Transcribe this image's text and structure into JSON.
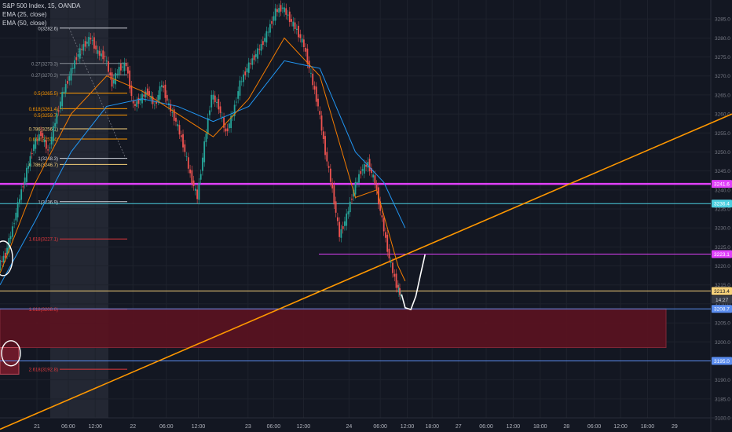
{
  "legend": {
    "title": "S&P 500 Index, 15, OANDA",
    "ema1": "EMA (25, close)",
    "ema2": "EMA (50, close)"
  },
  "colors": {
    "background": "#131722",
    "grid": "#1e222d",
    "candle_up": "#26a69a",
    "ema25": "#f57c00",
    "ema50": "#2196f3",
    "magenta": "#e040fb",
    "trendline": "#ff9800",
    "demand_zone": "#5c1220",
    "cyan": "#4dd0e1",
    "blue": "#5b8def",
    "yellow": "#f7d27a"
  },
  "chart_data": {
    "type": "line",
    "title": "S&P 500 Index, 15, OANDA",
    "xlabel": "",
    "ylabel": "",
    "ylim": [
      3180,
      3290
    ],
    "grid": true,
    "y_ticks": [
      "3285.0",
      "3280.0",
      "3275.0",
      "3270.0",
      "3265.0",
      "3260.0",
      "3255.0",
      "3250.0",
      "3245.0",
      "3240.0",
      "3235.0",
      "3230.0",
      "3225.0",
      "3220.0",
      "3215.0",
      "3210.0",
      "3205.0",
      "3200.0",
      "3195.0",
      "3190.0",
      "3185.0",
      "3180.0"
    ],
    "x_ticks": [
      "21",
      "06:00",
      "12:00",
      "22",
      "06:00",
      "12:00",
      "23",
      "06:00",
      "12:00",
      "24",
      "06:00",
      "12:00",
      "18:00",
      "27",
      "06:00",
      "12:00",
      "18:00",
      "28",
      "06:00",
      "12:00",
      "18:00",
      "29"
    ],
    "x_tick_pos": [
      0.052,
      0.096,
      0.134,
      0.187,
      0.234,
      0.279,
      0.349,
      0.385,
      0.427,
      0.491,
      0.535,
      0.573,
      0.608,
      0.645,
      0.684,
      0.722,
      0.76,
      0.797,
      0.836,
      0.873,
      0.911,
      0.949
    ],
    "price_series": [
      [
        0.0,
        3220.0
      ],
      [
        0.01,
        3223.0
      ],
      [
        0.02,
        3230.0
      ],
      [
        0.03,
        3238.0
      ],
      [
        0.04,
        3245.0
      ],
      [
        0.05,
        3252.0
      ],
      [
        0.06,
        3255.0
      ],
      [
        0.07,
        3250.0
      ],
      [
        0.08,
        3258.0
      ],
      [
        0.09,
        3265.0
      ],
      [
        0.1,
        3270.0
      ],
      [
        0.11,
        3275.0
      ],
      [
        0.12,
        3278.0
      ],
      [
        0.13,
        3280.0
      ],
      [
        0.14,
        3276.0
      ],
      [
        0.15,
        3275.0
      ],
      [
        0.16,
        3268.0
      ],
      [
        0.17,
        3272.0
      ],
      [
        0.18,
        3273.0
      ],
      [
        0.19,
        3262.0
      ],
      [
        0.2,
        3264.0
      ],
      [
        0.21,
        3266.0
      ],
      [
        0.22,
        3262.0
      ],
      [
        0.23,
        3268.0
      ],
      [
        0.24,
        3262.0
      ],
      [
        0.25,
        3258.0
      ],
      [
        0.26,
        3252.0
      ],
      [
        0.27,
        3244.0
      ],
      [
        0.28,
        3238.0
      ],
      [
        0.29,
        3252.0
      ],
      [
        0.3,
        3265.0
      ],
      [
        0.31,
        3262.0
      ],
      [
        0.32,
        3255.0
      ],
      [
        0.33,
        3260.0
      ],
      [
        0.34,
        3268.0
      ],
      [
        0.35,
        3272.0
      ],
      [
        0.36,
        3275.0
      ],
      [
        0.37,
        3278.0
      ],
      [
        0.38,
        3282.0
      ],
      [
        0.39,
        3287.0
      ],
      [
        0.4,
        3288.0
      ],
      [
        0.41,
        3285.0
      ],
      [
        0.42,
        3282.0
      ],
      [
        0.43,
        3278.0
      ],
      [
        0.44,
        3270.0
      ],
      [
        0.45,
        3262.0
      ],
      [
        0.46,
        3250.0
      ],
      [
        0.47,
        3240.0
      ],
      [
        0.48,
        3228.0
      ],
      [
        0.49,
        3233.0
      ],
      [
        0.5,
        3240.0
      ],
      [
        0.51,
        3245.0
      ],
      [
        0.52,
        3247.0
      ],
      [
        0.53,
        3242.0
      ],
      [
        0.54,
        3232.0
      ],
      [
        0.55,
        3222.0
      ],
      [
        0.56,
        3215.0
      ],
      [
        0.565,
        3212.0
      ]
    ],
    "ema25_series": [
      [
        0.0,
        3218.0
      ],
      [
        0.05,
        3242.0
      ],
      [
        0.1,
        3260.0
      ],
      [
        0.15,
        3270.0
      ],
      [
        0.2,
        3266.0
      ],
      [
        0.25,
        3260.0
      ],
      [
        0.3,
        3254.0
      ],
      [
        0.35,
        3264.0
      ],
      [
        0.4,
        3280.0
      ],
      [
        0.45,
        3270.0
      ],
      [
        0.5,
        3238.0
      ],
      [
        0.53,
        3240.0
      ],
      [
        0.56,
        3220.0
      ],
      [
        0.57,
        3216.0
      ]
    ],
    "ema50_series": [
      [
        0.0,
        3215.0
      ],
      [
        0.05,
        3232.0
      ],
      [
        0.1,
        3250.0
      ],
      [
        0.15,
        3262.0
      ],
      [
        0.2,
        3264.0
      ],
      [
        0.25,
        3262.0
      ],
      [
        0.3,
        3258.0
      ],
      [
        0.35,
        3262.0
      ],
      [
        0.4,
        3274.0
      ],
      [
        0.45,
        3272.0
      ],
      [
        0.5,
        3250.0
      ],
      [
        0.54,
        3242.0
      ],
      [
        0.56,
        3234.0
      ],
      [
        0.57,
        3230.0
      ]
    ],
    "fib_levels": [
      {
        "label": "0(3282.6)",
        "value": 3282.6,
        "color": "#d1d4dc"
      },
      {
        "label": "0.27(3273.3)",
        "value": 3273.3,
        "color": "#8a8f98"
      },
      {
        "label": "0.27(3270.3)",
        "value": 3270.3,
        "color": "#8a8f98"
      },
      {
        "label": "0.5(3265.5)",
        "value": 3265.5,
        "color": "#ff9800"
      },
      {
        "label": "0.618(3261.4)",
        "value": 3261.4,
        "color": "#ff9800"
      },
      {
        "label": "0.5(3259.7)",
        "value": 3259.7,
        "color": "#ff9800"
      },
      {
        "label": "0.786(3256.1)",
        "value": 3256.1,
        "color": "#f7d27a"
      },
      {
        "label": "0.618(3253.4)",
        "value": 3253.4,
        "color": "#ff9800"
      },
      {
        "label": "1(3248.3)",
        "value": 3248.3,
        "color": "#d1d4dc"
      },
      {
        "label": "0.786(3246.7)",
        "value": 3246.7,
        "color": "#f7d27a"
      },
      {
        "label": "1(3236.9)",
        "value": 3236.9,
        "color": "#d1d4dc"
      },
      {
        "label": "1.618(3227.1)",
        "value": 3227.1,
        "color": "#e5393d"
      },
      {
        "label": "1.618(3208.6)",
        "value": 3208.6,
        "color": "#e5393d"
      },
      {
        "label": "2.618(3192.8)",
        "value": 3192.8,
        "color": "#e5393d"
      }
    ],
    "horizontal_lines": [
      {
        "label": "3241.6",
        "value": 3241.6,
        "color": "#e040fb"
      },
      {
        "label": "3236.4",
        "value": 3236.4,
        "color": "#4dd0e1"
      },
      {
        "label": "3223.1",
        "value": 3223.1,
        "color": "#e040fb"
      },
      {
        "label": "3213.4",
        "value": 3213.4,
        "color": "#f7d27a"
      },
      {
        "label": "3208.7",
        "value": 3208.7,
        "color": "#5b8def"
      },
      {
        "label": "3195.0",
        "value": 3195.0,
        "color": "#5b8def"
      }
    ],
    "current_price": {
      "label": "3213.4",
      "value": 3213.4
    },
    "countdown": "14:27",
    "demand_zone": {
      "top": 3208.7,
      "bottom": 3198.5
    },
    "trendline": {
      "start": [
        0.0,
        3177.0
      ],
      "end": [
        1.0,
        3260.0
      ]
    },
    "projection": {
      "points": [
        [
          0.565,
          3212.5
        ],
        [
          0.57,
          3209.0
        ],
        [
          0.578,
          3208.5
        ],
        [
          0.585,
          3212.0
        ],
        [
          0.592,
          3218.0
        ],
        [
          0.598,
          3223.0
        ]
      ]
    }
  }
}
